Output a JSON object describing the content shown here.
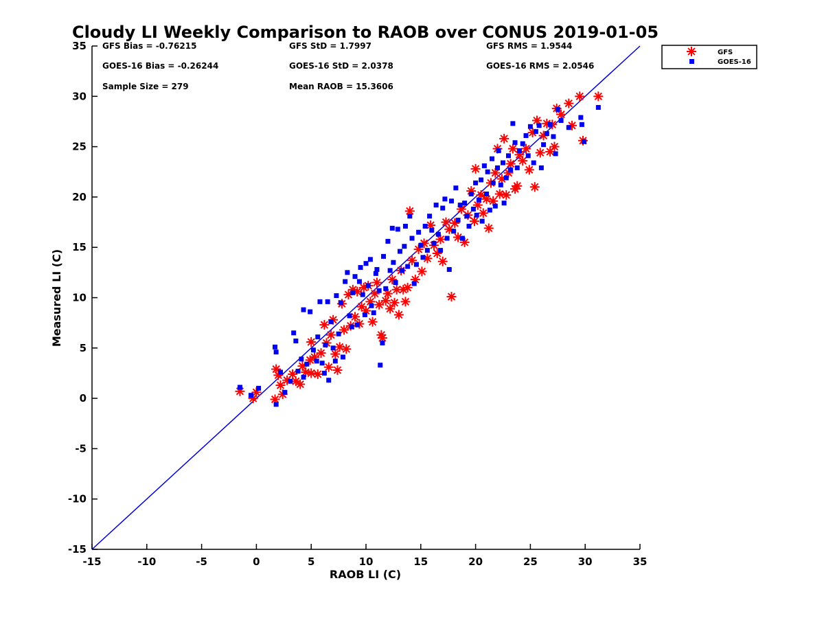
{
  "chart_data": {
    "type": "scatter",
    "title": "Cloudy LI Weekly Comparison to RAOB over CONUS 2019-01-05",
    "xlabel": "RAOB LI (C)",
    "ylabel": "Measured LI (C)",
    "xlim": [
      -15,
      35
    ],
    "ylim": [
      -15,
      35
    ],
    "xticks": [
      "-15",
      "-10",
      "-5",
      "0",
      "5",
      "10",
      "15",
      "20",
      "25",
      "30",
      "35"
    ],
    "yticks": [
      "-15",
      "-10",
      "-5",
      "0",
      "5",
      "10",
      "15",
      "20",
      "25",
      "30",
      "35"
    ],
    "grid": false,
    "legend_position": "outside-top-right",
    "reference_line": {
      "x": [
        -15,
        35
      ],
      "y": [
        -15,
        35
      ],
      "color": "#0000dd"
    },
    "stats": {
      "gfs_bias": "GFS Bias = -0.76215",
      "gfs_std": "GFS StD = 1.7997",
      "gfs_rms": "GFS RMS = 1.9544",
      "goes_bias": "GOES-16 Bias = -0.26244",
      "goes_std": "GOES-16 StD = 2.0378",
      "goes_rms": "GOES-16 RMS = 2.0546",
      "sample_size": "Sample Size = 279",
      "mean_raob": "Mean RAOB = 15.3606"
    },
    "series": [
      {
        "name": "GFS",
        "marker": "asterisk",
        "color": "#ff0000",
        "points": [
          [
            -1.5,
            0.7
          ],
          [
            -0.3,
            0
          ],
          [
            0,
            0.6
          ],
          [
            1.7,
            -0.1
          ],
          [
            1.8,
            2.9
          ],
          [
            2,
            2.3
          ],
          [
            2.2,
            1.3
          ],
          [
            2.4,
            0.4
          ],
          [
            2.8,
            1.8
          ],
          [
            3.3,
            2.4
          ],
          [
            3.6,
            1.7
          ],
          [
            4,
            1.4
          ],
          [
            4.2,
            3.2
          ],
          [
            4.5,
            2.6
          ],
          [
            4.9,
            3.8
          ],
          [
            5,
            5.6
          ],
          [
            5,
            2.5
          ],
          [
            5.3,
            4.1
          ],
          [
            5.6,
            2.4
          ],
          [
            5.9,
            4.5
          ],
          [
            6.2,
            7.3
          ],
          [
            6.4,
            5.5
          ],
          [
            6.6,
            3.1
          ],
          [
            6.8,
            6.3
          ],
          [
            7,
            7.8
          ],
          [
            7.2,
            4.4
          ],
          [
            7.4,
            2.8
          ],
          [
            7.6,
            5.1
          ],
          [
            7.8,
            9.4
          ],
          [
            8,
            6.8
          ],
          [
            8.2,
            4.9
          ],
          [
            8.4,
            10.3
          ],
          [
            8.6,
            7.2
          ],
          [
            8.8,
            10.8
          ],
          [
            9,
            8.1
          ],
          [
            9.2,
            10.6
          ],
          [
            9.4,
            7.4
          ],
          [
            9.6,
            9.1
          ],
          [
            9.8,
            11
          ],
          [
            10,
            8.7
          ],
          [
            10.2,
            11.2
          ],
          [
            10.4,
            9.6
          ],
          [
            10.6,
            7.6
          ],
          [
            10.8,
            10.4
          ],
          [
            11,
            11.5
          ],
          [
            11.2,
            9.3
          ],
          [
            11.4,
            6.3
          ],
          [
            11.5,
            6
          ],
          [
            11.8,
            9.7
          ],
          [
            12,
            10.4
          ],
          [
            12.2,
            8.9
          ],
          [
            12.4,
            11.8
          ],
          [
            12.6,
            9.5
          ],
          [
            12.8,
            10.8
          ],
          [
            13,
            8.3
          ],
          [
            13.2,
            12.7
          ],
          [
            13.4,
            10.8
          ],
          [
            13.6,
            9.6
          ],
          [
            13.8,
            11
          ],
          [
            14,
            18.6
          ],
          [
            14.2,
            13.7
          ],
          [
            14.5,
            11.8
          ],
          [
            14.8,
            14.8
          ],
          [
            15.1,
            12.6
          ],
          [
            15.3,
            15.4
          ],
          [
            15.6,
            13.9
          ],
          [
            15.9,
            17.2
          ],
          [
            16.2,
            15.2
          ],
          [
            16.5,
            14.4
          ],
          [
            16.8,
            15.8
          ],
          [
            17,
            13.6
          ],
          [
            17.3,
            17.5
          ],
          [
            17.6,
            16.8
          ],
          [
            17.8,
            10.1
          ],
          [
            18.1,
            17.4
          ],
          [
            18.4,
            16
          ],
          [
            18.7,
            18.8
          ],
          [
            19,
            15.5
          ],
          [
            19.3,
            18.2
          ],
          [
            19.6,
            20.6
          ],
          [
            19.9,
            17.6
          ],
          [
            20,
            22.8
          ],
          [
            20.2,
            19.2
          ],
          [
            20.5,
            20.2
          ],
          [
            20.7,
            18.4
          ],
          [
            21,
            19.8
          ],
          [
            21.2,
            16.9
          ],
          [
            21.4,
            21.4
          ],
          [
            21.6,
            19.6
          ],
          [
            21.8,
            22.4
          ],
          [
            22,
            24.8
          ],
          [
            22.2,
            20.3
          ],
          [
            22.4,
            21.8
          ],
          [
            22.6,
            25.8
          ],
          [
            22.8,
            20.2
          ],
          [
            23,
            22.4
          ],
          [
            23.2,
            23.3
          ],
          [
            23.4,
            24.8
          ],
          [
            23.6,
            20.8
          ],
          [
            23.8,
            21.1
          ],
          [
            24,
            24.2
          ],
          [
            24.3,
            23.6
          ],
          [
            24.6,
            24.8
          ],
          [
            24.9,
            22.7
          ],
          [
            25.2,
            26.4
          ],
          [
            25.4,
            21
          ],
          [
            25.6,
            27.6
          ],
          [
            25.9,
            24.4
          ],
          [
            26.2,
            26.1
          ],
          [
            26.5,
            27.3
          ],
          [
            26.8,
            24.5
          ],
          [
            27,
            27.2
          ],
          [
            27.2,
            25
          ],
          [
            27.4,
            28.8
          ],
          [
            27.8,
            28.2
          ],
          [
            28.5,
            29.3
          ],
          [
            28.8,
            27.1
          ],
          [
            29.5,
            30
          ],
          [
            29.8,
            25.6
          ],
          [
            31.2,
            30
          ]
        ]
      },
      {
        "name": "GOES-16",
        "marker": "square",
        "color": "#0000ee",
        "points": [
          [
            -1.5,
            1.1
          ],
          [
            -0.5,
            0.3
          ],
          [
            0.2,
            1
          ],
          [
            1.7,
            5.1
          ],
          [
            1.8,
            4.6
          ],
          [
            1.8,
            -0.6
          ],
          [
            2.2,
            2.6
          ],
          [
            2.6,
            0.6
          ],
          [
            3.1,
            1.7
          ],
          [
            3.4,
            6.5
          ],
          [
            3.6,
            5.7
          ],
          [
            3.8,
            2.7
          ],
          [
            4.1,
            3.9
          ],
          [
            4.3,
            2.1
          ],
          [
            4.3,
            8.8
          ],
          [
            4.6,
            3.4
          ],
          [
            4.9,
            8.6
          ],
          [
            5.2,
            4.8
          ],
          [
            5.5,
            3.7
          ],
          [
            5.6,
            6.1
          ],
          [
            5.8,
            9.6
          ],
          [
            6,
            3.5
          ],
          [
            6.2,
            2.5
          ],
          [
            6.3,
            5.3
          ],
          [
            6.5,
            9.6
          ],
          [
            6.6,
            1.8
          ],
          [
            6.8,
            7.6
          ],
          [
            7,
            5
          ],
          [
            7.2,
            3.7
          ],
          [
            7.3,
            10.2
          ],
          [
            7.5,
            6.4
          ],
          [
            7.7,
            9.5
          ],
          [
            7.9,
            4.1
          ],
          [
            8.1,
            11.6
          ],
          [
            8.3,
            12.5
          ],
          [
            8.5,
            8.2
          ],
          [
            8.7,
            7.1
          ],
          [
            8.8,
            10.5
          ],
          [
            9,
            12.1
          ],
          [
            9.2,
            7.3
          ],
          [
            9.4,
            11.6
          ],
          [
            9.5,
            13
          ],
          [
            9.7,
            10.3
          ],
          [
            9.9,
            8.3
          ],
          [
            10,
            13.4
          ],
          [
            10.2,
            11.2
          ],
          [
            10.4,
            13.8
          ],
          [
            10.5,
            9.2
          ],
          [
            10.7,
            8.5
          ],
          [
            10.9,
            12.4
          ],
          [
            11,
            12.8
          ],
          [
            11.2,
            10.7
          ],
          [
            11.3,
            3.3
          ],
          [
            11.5,
            5.5
          ],
          [
            11.6,
            14.1
          ],
          [
            11.8,
            10.9
          ],
          [
            12,
            15.6
          ],
          [
            12.2,
            12.7
          ],
          [
            12.4,
            16.9
          ],
          [
            12.5,
            13.5
          ],
          [
            12.7,
            11.5
          ],
          [
            12.9,
            16.8
          ],
          [
            13.1,
            14.6
          ],
          [
            13.3,
            12.7
          ],
          [
            13.5,
            15.1
          ],
          [
            13.6,
            17.1
          ],
          [
            13.8,
            13.1
          ],
          [
            14,
            18.1
          ],
          [
            14.2,
            15.9
          ],
          [
            14.4,
            11.4
          ],
          [
            14.6,
            13.3
          ],
          [
            14.8,
            16.5
          ],
          [
            15,
            15.2
          ],
          [
            15.2,
            14
          ],
          [
            15.4,
            17.1
          ],
          [
            15.6,
            14.7
          ],
          [
            15.8,
            18.1
          ],
          [
            16,
            16.7
          ],
          [
            16.2,
            15.4
          ],
          [
            16.4,
            19.2
          ],
          [
            16.6,
            16.3
          ],
          [
            16.8,
            14.7
          ],
          [
            17,
            18.9
          ],
          [
            17.2,
            19.8
          ],
          [
            17.4,
            15.9
          ],
          [
            17.6,
            12.8
          ],
          [
            17.8,
            19.6
          ],
          [
            18,
            16.6
          ],
          [
            18.2,
            20.9
          ],
          [
            18.4,
            17.7
          ],
          [
            18.6,
            19.2
          ],
          [
            18.8,
            15.9
          ],
          [
            19,
            19.4
          ],
          [
            19.2,
            18.1
          ],
          [
            19.4,
            17.1
          ],
          [
            19.6,
            20.3
          ],
          [
            19.8,
            18.8
          ],
          [
            20,
            21.4
          ],
          [
            20.1,
            18.2
          ],
          [
            20.3,
            19.7
          ],
          [
            20.5,
            21.7
          ],
          [
            20.6,
            17.6
          ],
          [
            20.8,
            23.1
          ],
          [
            21,
            20.3
          ],
          [
            21.1,
            22.5
          ],
          [
            21.3,
            18.7
          ],
          [
            21.5,
            23.8
          ],
          [
            21.6,
            21.4
          ],
          [
            21.8,
            19.1
          ],
          [
            22,
            22.9
          ],
          [
            22.1,
            24.6
          ],
          [
            22.3,
            21.2
          ],
          [
            22.5,
            23.4
          ],
          [
            22.6,
            19.4
          ],
          [
            22.8,
            21.9
          ],
          [
            23,
            24.1
          ],
          [
            23.2,
            22.7
          ],
          [
            23.4,
            27.3
          ],
          [
            23.6,
            25.4
          ],
          [
            23.8,
            22.9
          ],
          [
            24,
            24.6
          ],
          [
            24.3,
            25.3
          ],
          [
            24.6,
            26.1
          ],
          [
            24.8,
            24.1
          ],
          [
            25,
            27
          ],
          [
            25.3,
            23.4
          ],
          [
            25.5,
            26.5
          ],
          [
            25.8,
            27.1
          ],
          [
            26,
            22.9
          ],
          [
            26.2,
            25.2
          ],
          [
            26.5,
            26.3
          ],
          [
            26.8,
            27.2
          ],
          [
            27.1,
            26
          ],
          [
            27.3,
            24.3
          ],
          [
            27.5,
            28.7
          ],
          [
            27.8,
            27.6
          ],
          [
            28.5,
            26.9
          ],
          [
            29.6,
            27.9
          ],
          [
            29.7,
            27.2
          ],
          [
            29.9,
            25.5
          ],
          [
            31.2,
            28.9
          ]
        ]
      }
    ]
  }
}
